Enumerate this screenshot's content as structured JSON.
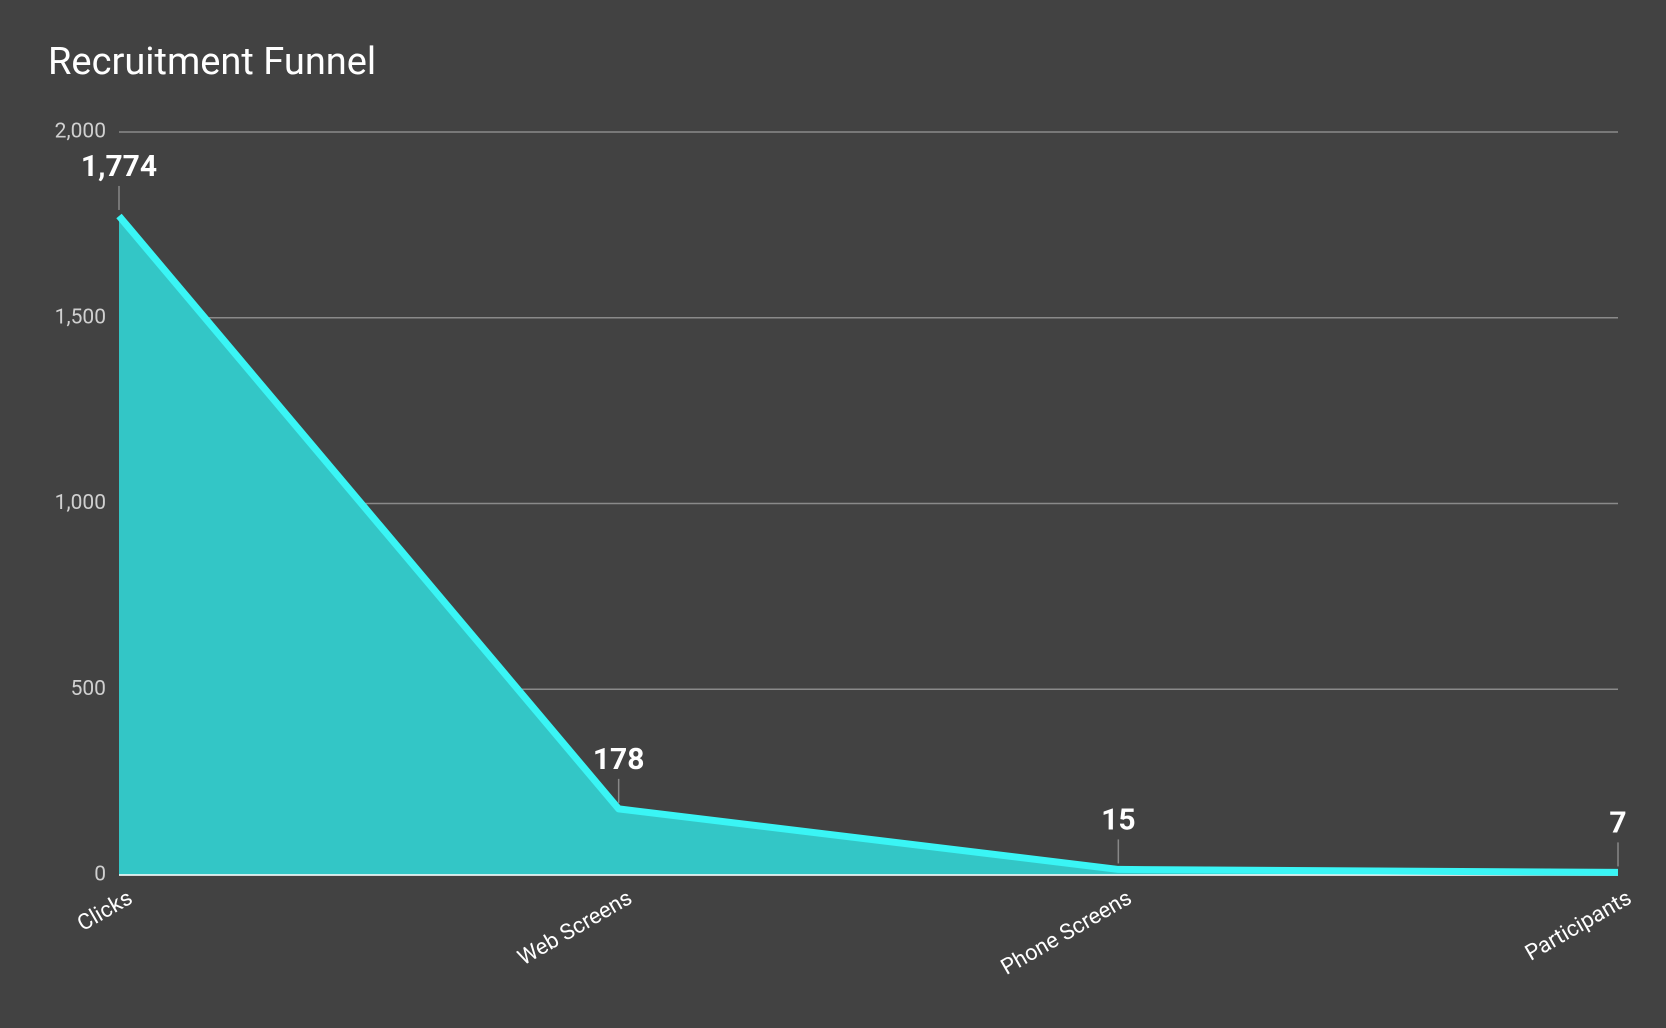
{
  "chart_data": {
    "type": "area",
    "title": "Recruitment Funnel",
    "categories": [
      "Clicks",
      "Web Screens",
      "Phone Screens",
      "Participants"
    ],
    "values": [
      1774,
      178,
      15,
      7
    ],
    "value_labels": [
      "1,774",
      "178",
      "15",
      "7"
    ],
    "color": "#33c6c6",
    "line_color": "#3af5f5",
    "ylim": [
      0,
      2000
    ],
    "yticks": [
      0,
      500,
      {
        "value": 1000,
        "label": "1,000"
      },
      {
        "value": 1500,
        "label": "1,500"
      },
      {
        "value": 2000,
        "label": "2,000"
      }
    ],
    "grid": true
  }
}
